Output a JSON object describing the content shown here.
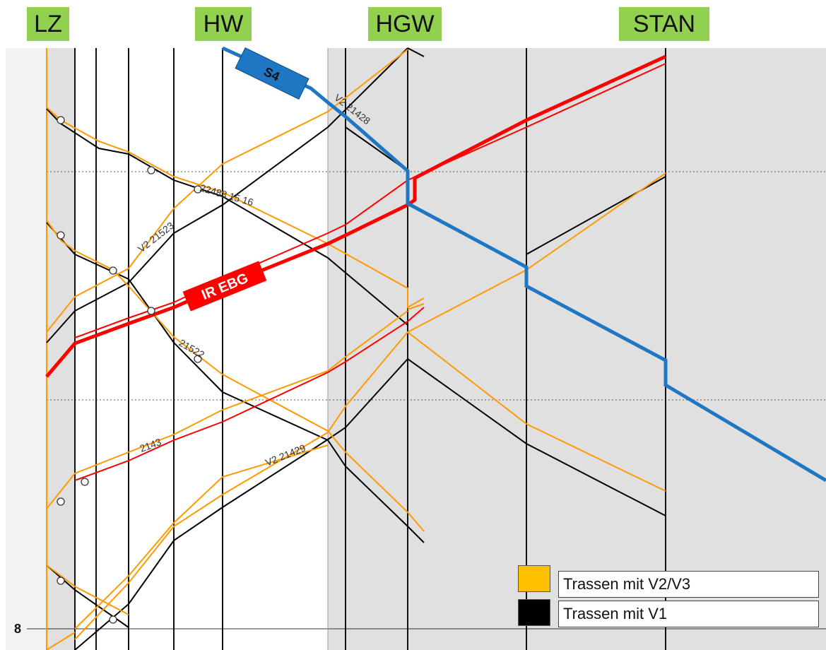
{
  "stations": [
    {
      "label": "LZ"
    },
    {
      "label": "HW"
    },
    {
      "label": "HGW"
    },
    {
      "label": "STAN"
    }
  ],
  "badges": {
    "s4": "S4",
    "ir_ebg": "IR EBG"
  },
  "train_labels": {
    "t21428": "V2 21428",
    "t22488": "22488 15 16",
    "t21523": "V2 21523",
    "t21522": "21522",
    "t2143": "2143",
    "t21429": "V2 21429"
  },
  "legend": [
    {
      "label": "Trassen mit V2/V3",
      "color": "#ffc000"
    },
    {
      "label": "Trassen mit V1",
      "color": "#000000"
    }
  ],
  "page_number": "8",
  "colors": {
    "orange": "#ff9900",
    "black": "#000000",
    "red": "#ff0000",
    "blue": "#1f77c4",
    "station_bg": "#92d050",
    "track_shade": "#e0e0e0"
  }
}
